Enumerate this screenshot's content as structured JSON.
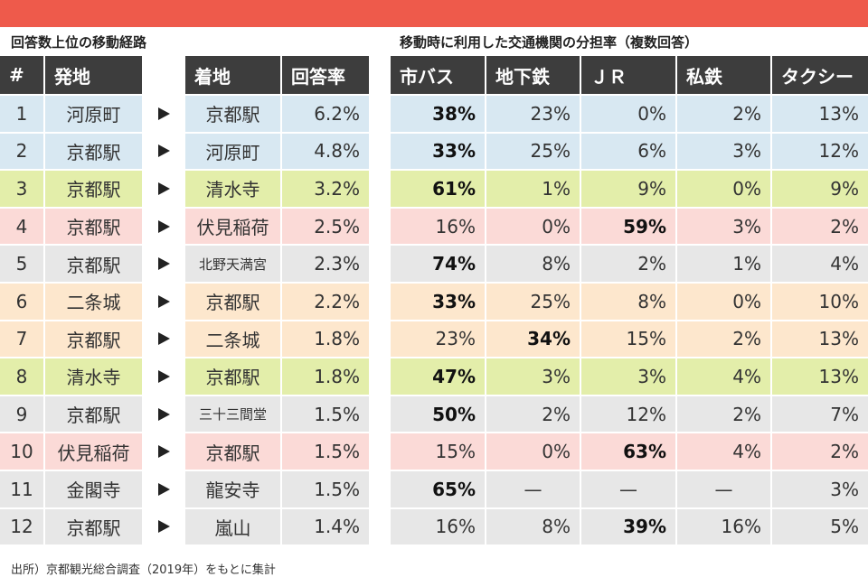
{
  "left_heading": "回答数上位の移動経路",
  "right_heading": "移動時に利用した交通機関の分担率（複数回答）",
  "left_headers": [
    "#",
    "発地",
    "着地",
    "回答率"
  ],
  "right_headers": [
    "市バス",
    "地下鉄",
    "ＪＲ",
    "私鉄",
    "タクシー"
  ],
  "rows": [
    {
      "rank": "1",
      "from": "河原町",
      "to": "京都駅",
      "rate": "6.2%",
      "shares": [
        "38%",
        "23%",
        "0%",
        "2%",
        "13%"
      ],
      "bold": 0,
      "color": "#d8e8f2"
    },
    {
      "rank": "2",
      "from": "京都駅",
      "to": "河原町",
      "rate": "4.8%",
      "shares": [
        "33%",
        "25%",
        "6%",
        "3%",
        "12%"
      ],
      "bold": 0,
      "color": "#d8e8f2"
    },
    {
      "rank": "3",
      "from": "京都駅",
      "to": "清水寺",
      "rate": "3.2%",
      "shares": [
        "61%",
        "1%",
        "9%",
        "0%",
        "9%"
      ],
      "bold": 0,
      "color": "#e3eeaa"
    },
    {
      "rank": "4",
      "from": "京都駅",
      "to": "伏見稲荷",
      "rate": "2.5%",
      "shares": [
        "16%",
        "0%",
        "59%",
        "3%",
        "2%"
      ],
      "bold": 2,
      "color": "#fbdad7"
    },
    {
      "rank": "5",
      "from": "京都駅",
      "to": "北野天満宮",
      "rate": "2.3%",
      "shares": [
        "74%",
        "8%",
        "2%",
        "1%",
        "4%"
      ],
      "bold": 0,
      "color": "#e7e7e7"
    },
    {
      "rank": "6",
      "from": "二条城",
      "to": "京都駅",
      "rate": "2.2%",
      "shares": [
        "33%",
        "25%",
        "8%",
        "0%",
        "10%"
      ],
      "bold": 0,
      "color": "#fde7cd"
    },
    {
      "rank": "7",
      "from": "京都駅",
      "to": "二条城",
      "rate": "1.8%",
      "shares": [
        "23%",
        "34%",
        "15%",
        "2%",
        "13%"
      ],
      "bold": 1,
      "color": "#fde7cd"
    },
    {
      "rank": "8",
      "from": "清水寺",
      "to": "京都駅",
      "rate": "1.8%",
      "shares": [
        "47%",
        "3%",
        "3%",
        "4%",
        "13%"
      ],
      "bold": 0,
      "color": "#e3eeaa"
    },
    {
      "rank": "9",
      "from": "京都駅",
      "to": "三十三間堂",
      "rate": "1.5%",
      "shares": [
        "50%",
        "2%",
        "12%",
        "2%",
        "7%"
      ],
      "bold": 0,
      "color": "#e7e7e7"
    },
    {
      "rank": "10",
      "from": "伏見稲荷",
      "to": "京都駅",
      "rate": "1.5%",
      "shares": [
        "15%",
        "0%",
        "63%",
        "4%",
        "2%"
      ],
      "bold": 2,
      "color": "#fbdad7"
    },
    {
      "rank": "11",
      "from": "金閣寺",
      "to": "龍安寺",
      "rate": "1.5%",
      "shares": [
        "65%",
        "—",
        "—",
        "—",
        "3%"
      ],
      "bold": 0,
      "color": "#e7e7e7"
    },
    {
      "rank": "12",
      "from": "京都駅",
      "to": "嵐山",
      "rate": "1.4%",
      "shares": [
        "16%",
        "8%",
        "39%",
        "16%",
        "5%"
      ],
      "bold": 2,
      "color": "#e7e7e7"
    }
  ],
  "footnote": "出所）京都観光総合調査（2019年）をもとに集計"
}
